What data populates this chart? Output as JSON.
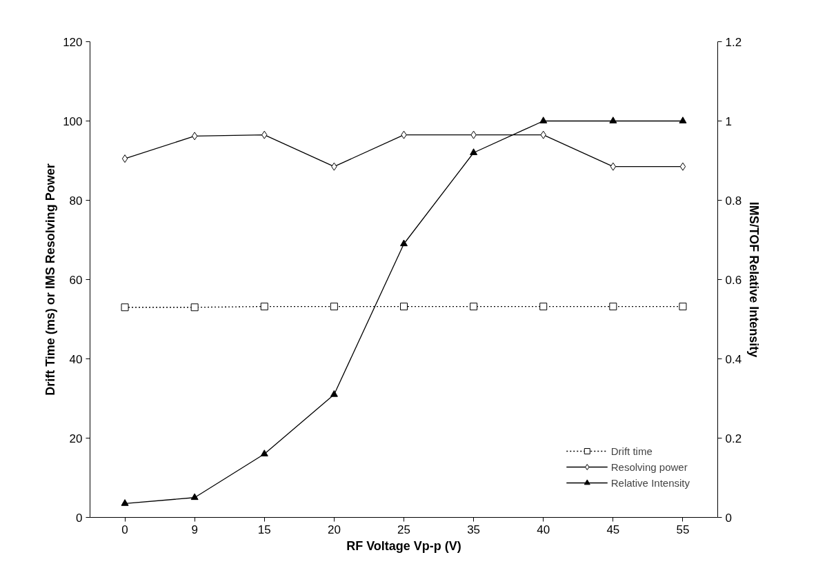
{
  "chart_data": {
    "type": "line",
    "xlabel": "RF Voltage Vp-p (V)",
    "ylabel": "Drift Time (ms) or IMS Resolving Power",
    "y2label": "IMS/TOF Relative Intensity",
    "categories": [
      "0",
      "9",
      "15",
      "20",
      "25",
      "35",
      "40",
      "45",
      "55"
    ],
    "series": [
      {
        "name": "Drift time",
        "color": "#000000",
        "marker": "square",
        "line_style": "dotted",
        "values": [
          53.0,
          53.0,
          53.2,
          53.2,
          53.2,
          53.2,
          53.2,
          53.2,
          53.2
        ]
      },
      {
        "name": "Resolving power",
        "color": "#000000",
        "marker": "diamond",
        "line_style": "solid",
        "values": [
          90.5,
          96.2,
          96.5,
          88.5,
          96.5,
          96.5,
          96.5,
          88.5,
          88.5
        ]
      },
      {
        "name": "Relative Intensity",
        "color": "#000000",
        "marker": "triangle",
        "line_style": "solid",
        "axis": "y2",
        "values": [
          0.035,
          0.05,
          0.16,
          0.31,
          0.69,
          0.92,
          1.0,
          1.0,
          1.0
        ]
      }
    ],
    "ylim": [
      0,
      120
    ],
    "yticks": [
      0,
      20,
      40,
      60,
      80,
      100,
      120
    ],
    "y2lim": [
      0,
      1.2
    ],
    "y2ticks": [
      0,
      {
        "value": 0.2,
        "label": "0.2"
      },
      {
        "value": 0.4,
        "label": "0.4"
      },
      {
        "value": 0.6,
        "label": "0.6"
      },
      {
        "value": 0.8,
        "label": "0.8"
      },
      1,
      {
        "value": 1.2,
        "label": "1.2"
      }
    ],
    "grid": false,
    "legend": "bottom right"
  }
}
